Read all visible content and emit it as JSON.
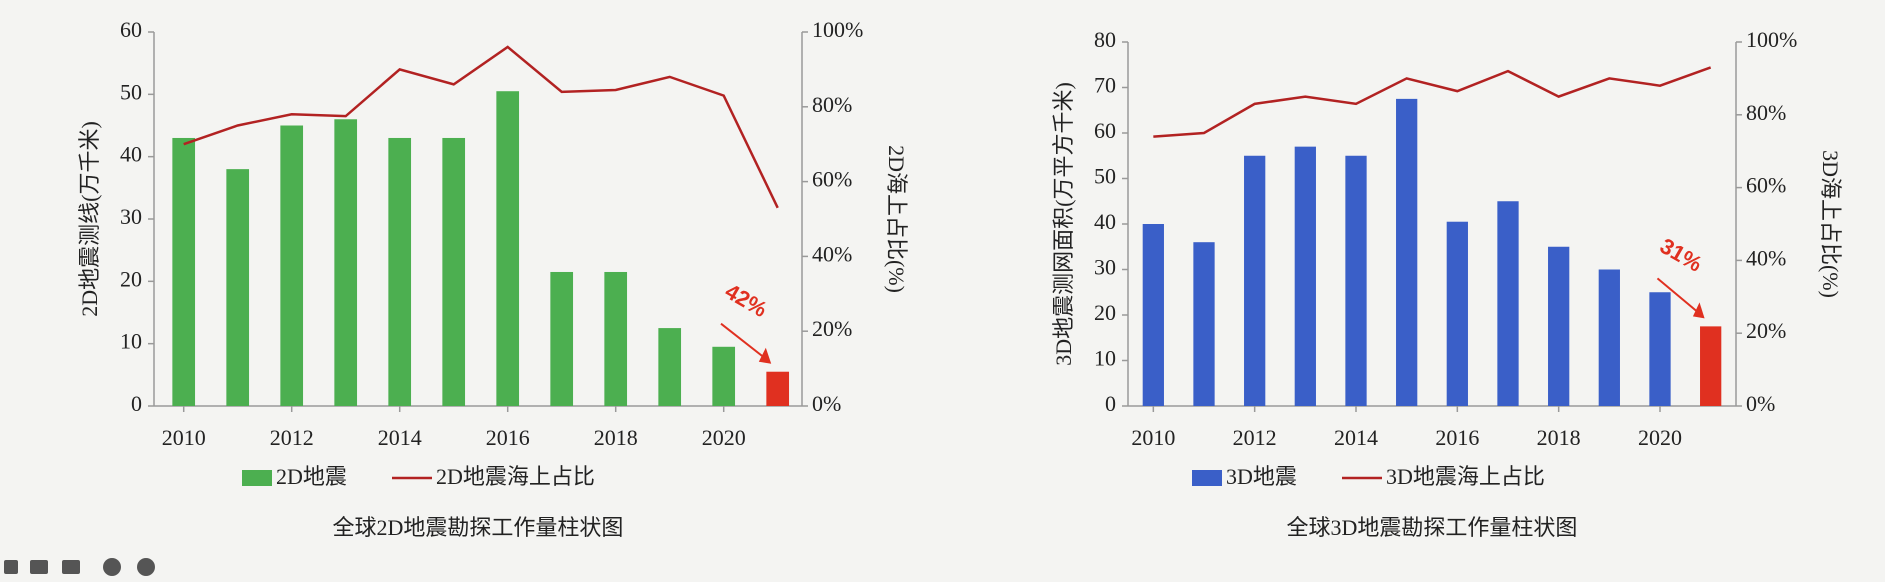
{
  "chart_data": [
    {
      "type": "bar",
      "title": "全球2D地震勘探工作量柱状图",
      "y_label": "2D地震测线(万千米)",
      "y2_label": "2D海上占比(%)",
      "x": [
        2010,
        2011,
        2012,
        2013,
        2014,
        2015,
        2016,
        2017,
        2018,
        2019,
        2020,
        2021
      ],
      "xlim": [
        2009.45,
        2021.45
      ],
      "xticks": [
        2010,
        2012,
        2014,
        2016,
        2018,
        2020
      ],
      "ylim": [
        0,
        60
      ],
      "yticks": [
        0,
        10,
        20,
        30,
        40,
        50,
        60
      ],
      "y2lim": [
        0,
        100
      ],
      "y2ticks": [
        {
          "value": 0,
          "label": "0%"
        },
        {
          "value": 20,
          "label": "20%"
        },
        {
          "value": 40,
          "label": "40%"
        },
        {
          "value": 60,
          "label": "60%"
        },
        {
          "value": 80,
          "label": "80%"
        },
        {
          "value": 100,
          "label": "100%"
        }
      ],
      "series": [
        {
          "name": "2D地震",
          "type": "bar",
          "color": "#4caf50",
          "colors": [
            "#4caf50",
            "#4caf50",
            "#4caf50",
            "#4caf50",
            "#4caf50",
            "#4caf50",
            "#4caf50",
            "#4caf50",
            "#4caf50",
            "#4caf50",
            "#4caf50",
            "#e03020"
          ],
          "values": [
            43,
            38,
            45,
            46,
            43,
            43,
            50.5,
            21.5,
            21.5,
            12.5,
            9.5,
            5.5
          ]
        },
        {
          "name": "2D地震海上占比",
          "type": "line",
          "axis": "y2",
          "color": "#b22222",
          "values": [
            70,
            75,
            78,
            77.5,
            90,
            86,
            96,
            84,
            84.5,
            88,
            83,
            53
          ]
        }
      ],
      "annotation": "42%",
      "annotation_color": "#e03020"
    },
    {
      "type": "bar",
      "title": "全球3D地震勘探工作量柱状图",
      "y_label": "3D地震测网面积(万平方千米)",
      "y2_label": "3D海上占比(%)",
      "x": [
        2010,
        2011,
        2012,
        2013,
        2014,
        2015,
        2016,
        2017,
        2018,
        2019,
        2020,
        2021
      ],
      "xlim": [
        2009.5,
        2021.5
      ],
      "xticks": [
        2010,
        2012,
        2014,
        2016,
        2018,
        2020
      ],
      "ylim": [
        0,
        80
      ],
      "yticks": [
        0,
        10,
        20,
        30,
        40,
        50,
        60,
        70,
        80
      ],
      "y2lim": [
        0,
        100
      ],
      "y2ticks": [
        {
          "value": 0,
          "label": "0%"
        },
        {
          "value": 20,
          "label": "20%"
        },
        {
          "value": 40,
          "label": "40%"
        },
        {
          "value": 60,
          "label": "60%"
        },
        {
          "value": 80,
          "label": "80%"
        },
        {
          "value": 100,
          "label": "100%"
        }
      ],
      "series": [
        {
          "name": "3D地震",
          "type": "bar",
          "color": "#3a5fc8",
          "colors": [
            "#3a5fc8",
            "#3a5fc8",
            "#3a5fc8",
            "#3a5fc8",
            "#3a5fc8",
            "#3a5fc8",
            "#3a5fc8",
            "#3a5fc8",
            "#3a5fc8",
            "#3a5fc8",
            "#3a5fc8",
            "#e03020"
          ],
          "values": [
            40,
            36,
            55,
            57,
            55,
            67.5,
            40.5,
            45,
            35,
            30,
            25,
            17.5
          ]
        },
        {
          "name": "3D地震海上占比",
          "type": "line",
          "axis": "y2",
          "color": "#b22222",
          "values": [
            74,
            75,
            83,
            85,
            83,
            90,
            86.5,
            92,
            85,
            90,
            88,
            93
          ]
        }
      ],
      "annotation": "31%",
      "annotation_color": "#e03020"
    }
  ]
}
